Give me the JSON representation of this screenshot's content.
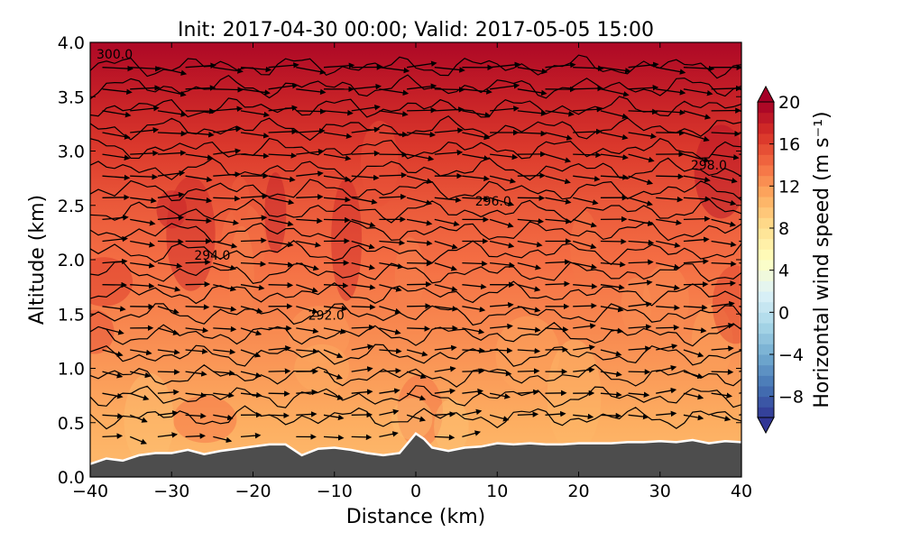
{
  "chart_data": {
    "type": "contourf",
    "title": "Init: 2017-04-30 00:00; Valid: 2017-05-05 15:00",
    "xlabel": "Distance (km)",
    "ylabel": "Altitude (km)",
    "xlim": [
      -40,
      40
    ],
    "ylim": [
      0.0,
      4.0
    ],
    "x_ticks": [
      "−40",
      "−30",
      "−20",
      "−10",
      "0",
      "10",
      "20",
      "30",
      "40"
    ],
    "x_tick_values": [
      -40,
      -30,
      -20,
      -10,
      0,
      10,
      20,
      30,
      40
    ],
    "y_ticks": [
      "0.0",
      "0.5",
      "1.0",
      "1.5",
      "2.0",
      "2.5",
      "3.0",
      "3.5",
      "4.0"
    ],
    "y_tick_values": [
      0.0,
      0.5,
      1.0,
      1.5,
      2.0,
      2.5,
      3.0,
      3.5,
      4.0
    ],
    "colorbar": {
      "label": "Horizontal wind speed (m s⁻¹)",
      "min": -10,
      "max": 20,
      "tick_values": [
        -8,
        -4,
        0,
        4,
        8,
        12,
        16,
        20
      ],
      "ticks": [
        "−8",
        "−4",
        "0",
        "4",
        "8",
        "12",
        "16",
        "20"
      ],
      "extend": "both",
      "colors": [
        "#313695",
        "#4575b4",
        "#74add1",
        "#abd9e9",
        "#e0f3f8",
        "#ffffbf",
        "#fee090",
        "#fdae61",
        "#f46d43",
        "#d73027",
        "#a50026"
      ]
    },
    "wind_speed_field": {
      "description_levels": "height_km -> typical speed (m/s)",
      "heights": [
        0.2,
        0.5,
        1.0,
        1.5,
        2.0,
        2.5,
        3.0,
        3.5,
        4.0
      ],
      "speeds": [
        10.5,
        11.0,
        12.0,
        13.0,
        14.0,
        15.0,
        16.5,
        18.0,
        19.5
      ]
    },
    "theta_contours": [
      {
        "label": "292.0",
        "label_x": -11,
        "label_y": 1.45
      },
      {
        "label": "294.0",
        "label_x": -25,
        "label_y": 2.0
      },
      {
        "label": "296.0",
        "label_x": 9.5,
        "label_y": 2.5
      },
      {
        "label": "298.0",
        "label_x": 36,
        "label_y": 2.83
      },
      {
        "label": "300.0",
        "label_x": -37,
        "label_y": 3.85
      }
    ],
    "terrain": {
      "x": [
        -40,
        -38,
        -36,
        -34,
        -32,
        -30,
        -28,
        -26,
        -24,
        -22,
        -20,
        -18,
        -16,
        -14,
        -12,
        -10,
        -8,
        -6,
        -4,
        -2,
        0,
        1,
        2,
        4,
        6,
        8,
        10,
        12,
        14,
        16,
        18,
        20,
        22,
        24,
        26,
        28,
        30,
        32,
        34,
        36,
        38,
        40
      ],
      "y": [
        0.12,
        0.17,
        0.15,
        0.2,
        0.22,
        0.22,
        0.25,
        0.21,
        0.24,
        0.26,
        0.28,
        0.3,
        0.3,
        0.2,
        0.26,
        0.27,
        0.25,
        0.22,
        0.2,
        0.22,
        0.4,
        0.35,
        0.27,
        0.24,
        0.27,
        0.28,
        0.31,
        0.3,
        0.31,
        0.3,
        0.3,
        0.31,
        0.31,
        0.31,
        0.32,
        0.32,
        0.33,
        0.32,
        0.34,
        0.31,
        0.33,
        0.32
      ]
    }
  }
}
